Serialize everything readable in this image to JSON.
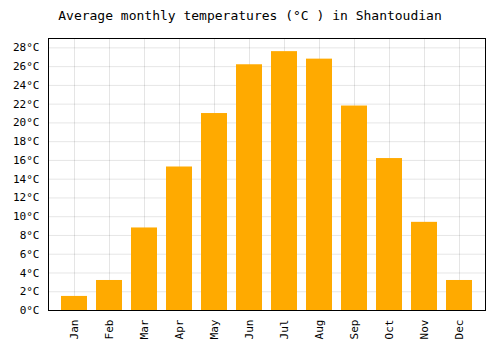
{
  "chart_data": {
    "type": "bar",
    "title": "Average monthly temperatures (°C ) in Shantoudian",
    "categories": [
      "Jan",
      "Feb",
      "Mar",
      "Apr",
      "May",
      "Jun",
      "Jul",
      "Aug",
      "Sep",
      "Oct",
      "Nov",
      "Dec"
    ],
    "values": [
      1.5,
      3.2,
      8.8,
      15.3,
      21.0,
      26.2,
      27.6,
      26.8,
      21.8,
      16.2,
      9.4,
      3.2
    ],
    "color": "#FFAA00",
    "ylim": [
      0,
      29
    ],
    "yticks": [
      {
        "value": 0,
        "label": "0°C"
      },
      {
        "value": 2,
        "label": "2°C"
      },
      {
        "value": 4,
        "label": "4°C"
      },
      {
        "value": 6,
        "label": "6°C"
      },
      {
        "value": 8,
        "label": "8°C"
      },
      {
        "value": 10,
        "label": "10°C"
      },
      {
        "value": 12,
        "label": "12°C"
      },
      {
        "value": 14,
        "label": "14°C"
      },
      {
        "value": 16,
        "label": "16°C"
      },
      {
        "value": 18,
        "label": "18°C"
      },
      {
        "value": 20,
        "label": "20°C"
      },
      {
        "value": 22,
        "label": "22°C"
      },
      {
        "value": 24,
        "label": "24°C"
      },
      {
        "value": 26,
        "label": "26°C"
      },
      {
        "value": 28,
        "label": "28°C"
      }
    ],
    "grid": true
  }
}
